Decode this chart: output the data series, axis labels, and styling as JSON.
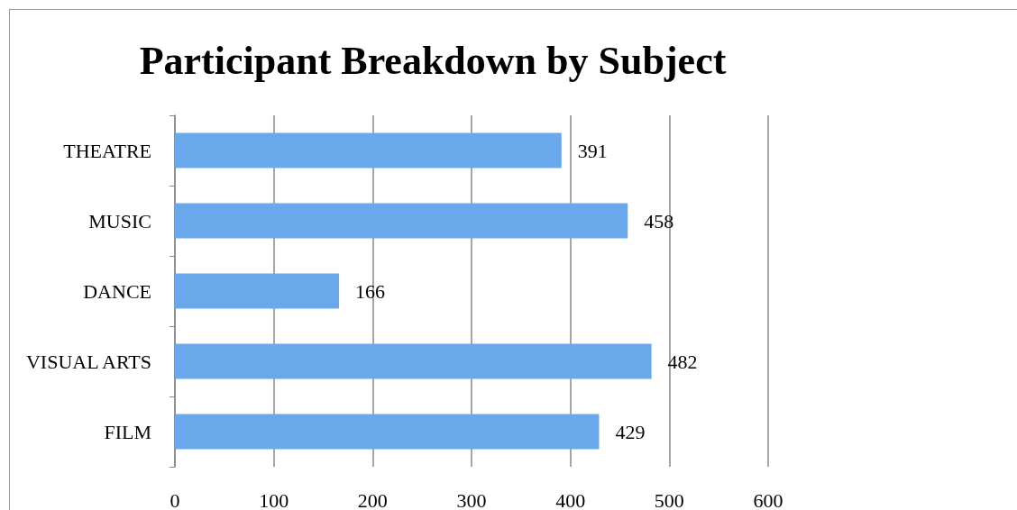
{
  "chart_data": {
    "type": "bar",
    "orientation": "horizontal",
    "title": "Participant Breakdown by Subject",
    "categories": [
      "THEATRE",
      "MUSIC",
      "DANCE",
      "VISUAL ARTS",
      "FILM"
    ],
    "values": [
      391,
      458,
      166,
      482,
      429
    ],
    "color": "#6aa8ec",
    "xlim": [
      0,
      600
    ],
    "xticks": [
      0,
      100,
      200,
      300,
      400,
      500,
      600
    ],
    "grid": "x",
    "data_labels": true
  }
}
